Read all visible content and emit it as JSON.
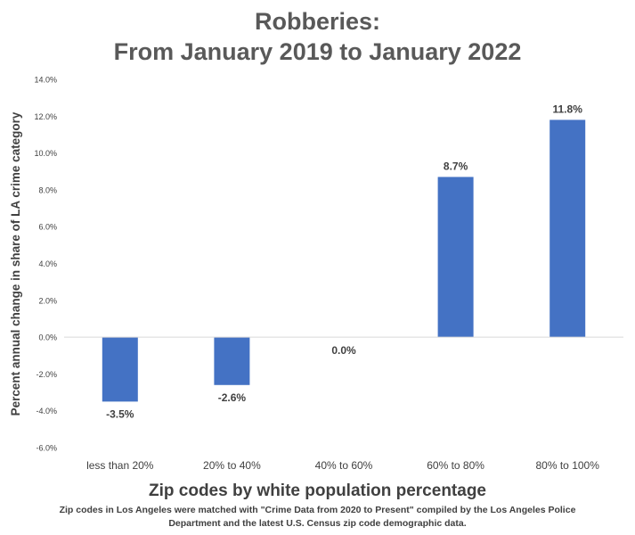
{
  "chart_data": {
    "type": "bar",
    "title_lines": [
      "Robberies:",
      "From January 2019 to January 2022"
    ],
    "categories": [
      "less than 20%",
      "20% to 40%",
      "40% to 60%",
      "60% to 80%",
      "80% to 100%"
    ],
    "values": [
      -3.5,
      -2.6,
      0.0,
      8.7,
      11.8
    ],
    "value_labels": [
      "-3.5%",
      "-2.6%",
      "0.0%",
      "8.7%",
      "11.8%"
    ],
    "xlabel": "Zip codes by white population percentage",
    "ylabel": "Percent annual change in share of LA crime category",
    "ylim": [
      -6,
      14
    ],
    "yticks": [
      14,
      12,
      10,
      8,
      6,
      4,
      2,
      0,
      -2,
      -4,
      -6
    ],
    "ytick_labels": [
      "14.0%",
      "12.0%",
      "10.0%",
      "8.0%",
      "6.0%",
      "4.0%",
      "2.0%",
      "0.0%",
      "-2.0%",
      "-4.0%",
      "-6.0%"
    ],
    "bar_color": "#4472c4",
    "grid": false,
    "legend": "none"
  },
  "note_lines": [
    "Zip codes in Los Angeles were matched with \"Crime Data from 2020 to Present\" compiled by the Los Angeles Police",
    "Department and the latest U.S. Census zip code demographic data."
  ]
}
